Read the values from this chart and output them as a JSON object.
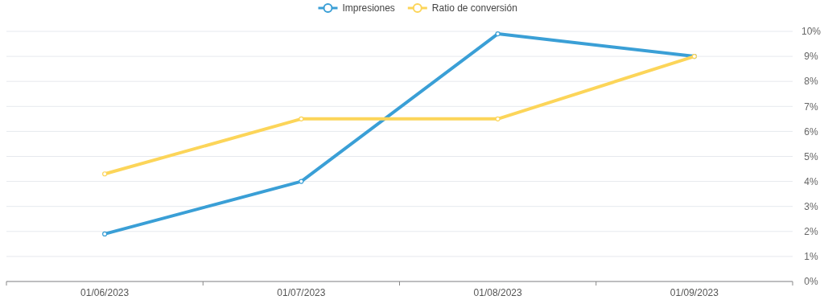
{
  "chart_data": {
    "type": "line",
    "categories": [
      "01/06/2023",
      "01/07/2023",
      "01/08/2023",
      "01/09/2023"
    ],
    "series": [
      {
        "name": "Impresiones",
        "color": "#3a9fd6",
        "values": [
          1.9,
          4.0,
          9.9,
          9.0
        ]
      },
      {
        "name": "Ratio de conversión",
        "color": "#fcd559",
        "values": [
          4.3,
          6.5,
          6.5,
          9.0
        ]
      }
    ],
    "ylim": [
      0,
      10
    ],
    "yticks": [
      {
        "value": 0,
        "label": "0%"
      },
      {
        "value": 1,
        "label": "1%"
      },
      {
        "value": 2,
        "label": "2%"
      },
      {
        "value": 3,
        "label": "3%"
      },
      {
        "value": 4,
        "label": "4%"
      },
      {
        "value": 5,
        "label": "5%"
      },
      {
        "value": 6,
        "label": "6%"
      },
      {
        "value": 7,
        "label": "7%"
      },
      {
        "value": 8,
        "label": "8%"
      },
      {
        "value": 9,
        "label": "9%"
      },
      {
        "value": 10,
        "label": "10%"
      }
    ],
    "grid": "y",
    "legend": "top",
    "marker": "circle",
    "line_style": "solid"
  }
}
